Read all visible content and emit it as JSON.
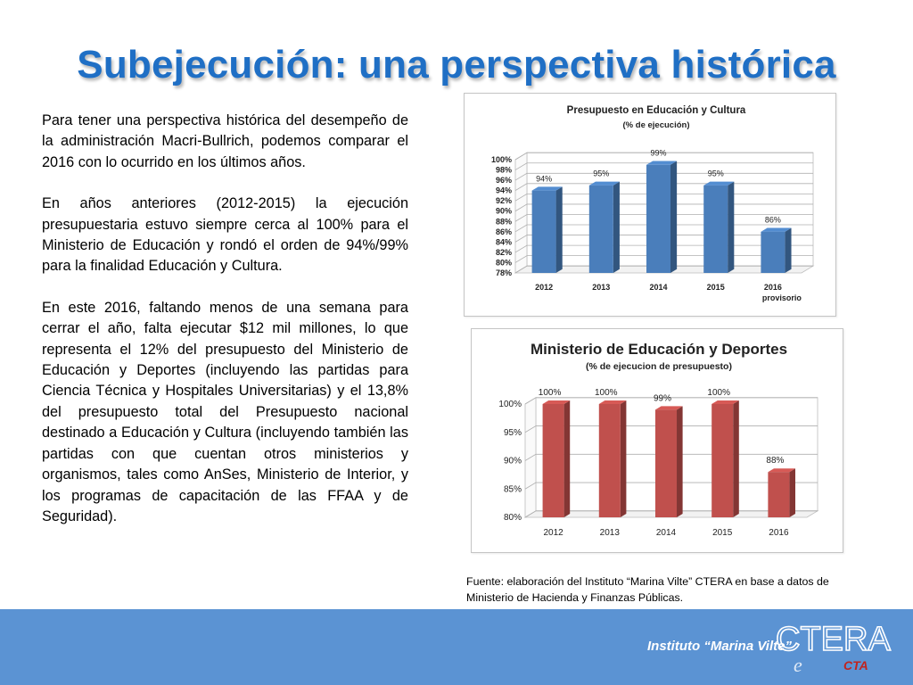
{
  "slide": {
    "title": "Subejecución:  una perspectiva histórica",
    "paragraphs": [
      "Para tener una perspectiva histórica del desempeño de la administración Macri-Bullrich, podemos comparar el 2016 con lo ocurrido en los últimos años.",
      "En años anteriores (2012-2015) la  ejecución presupuestaria estuvo siempre cerca al 100% para el Ministerio de Educación y rondó el orden de 94%/99%  para la finalidad Educación y Cultura.",
      "En este 2016, faltando menos de una semana para cerrar el año, falta ejecutar $12 mil millones, lo que representa el 12% del presupuesto del Ministerio de Educación y Deportes (incluyendo las partidas para Ciencia Técnica y Hospitales Universitarias) y el 13,8% del presupuesto total del Presupuesto nacional destinado a Educación y Cultura (incluyendo también las partidas con que cuentan otros ministerios y organismos, tales como AnSes, Ministerio de Interior, y los programas de capacitación de las FFAA y de Seguridad)."
    ],
    "source": "Fuente: elaboración del Instituto “Marina Vilte” CTERA en base a datos de Ministerio de Hacienda y Finanzas Públicas.",
    "footer_label": "Instituto “Marina Vilte”",
    "logo": {
      "name": "CTERA",
      "sub_letter": "e",
      "badge": "CTA"
    },
    "colors": {
      "title": "#1f6fc5",
      "footer": "#5b93d3",
      "bar_blue": "#4a7ebb",
      "bar_red": "#c0504d"
    }
  },
  "chart_data": [
    {
      "type": "bar",
      "title": "Presupuesto en Educación y Cultura",
      "subtitle": "(% de ejecución)",
      "categories": [
        "2012",
        "2013",
        "2014",
        "2015",
        "2016"
      ],
      "category_sublabels": [
        "",
        "",
        "",
        "",
        "provisorio"
      ],
      "values": [
        94,
        95,
        99,
        95,
        86
      ],
      "data_labels": [
        "94%",
        "95%",
        "99%",
        "95%",
        "86%"
      ],
      "ylim": [
        78,
        100
      ],
      "yticks": [
        "78%",
        "80%",
        "82%",
        "84%",
        "86%",
        "88%",
        "90%",
        "92%",
        "94%",
        "96%",
        "98%",
        "100%"
      ],
      "grid": true,
      "style": "3d",
      "color": "#4a7ebb"
    },
    {
      "type": "bar",
      "title": "Ministerio de Educación y Deportes",
      "subtitle": "(% de ejecucion de presupuesto)",
      "categories": [
        "2012",
        "2013",
        "2014",
        "2015",
        "2016"
      ],
      "values": [
        100,
        100,
        99,
        100,
        88
      ],
      "data_labels": [
        "100%",
        "100%",
        "99%",
        "100%",
        "88%"
      ],
      "ylim": [
        80,
        100
      ],
      "yticks": [
        "80%",
        "85%",
        "90%",
        "95%",
        "100%"
      ],
      "grid": true,
      "style": "3d",
      "color": "#c0504d"
    }
  ]
}
